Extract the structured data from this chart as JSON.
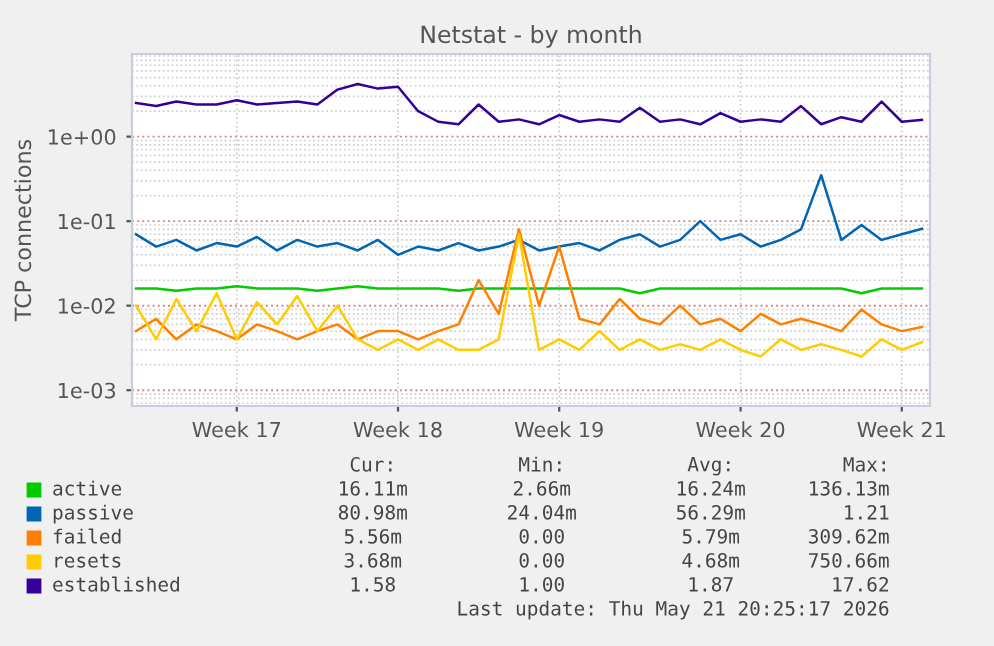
{
  "chart_data": {
    "type": "line",
    "title": "Netstat - by month",
    "ylabel": "TCP connections",
    "log": "y",
    "grid": true,
    "legend": "bottom",
    "marker": "none",
    "line_style": "solid",
    "ylim": [
      0.00065,
      9.5
    ],
    "yticks": [
      {
        "value": 0.001,
        "label": "1e-03"
      },
      {
        "value": 0.01,
        "label": "1e-02"
      },
      {
        "value": 0.1,
        "label": "1e-01"
      },
      {
        "value": 1,
        "label": "1e+00"
      }
    ],
    "categories": [
      null,
      null,
      null,
      null,
      null,
      "Week 17",
      null,
      null,
      null,
      null,
      null,
      null,
      null,
      "Week 18",
      null,
      null,
      null,
      null,
      null,
      null,
      null,
      "Week 19",
      null,
      null,
      null,
      null,
      null,
      null,
      null,
      null,
      "Week 20",
      null,
      null,
      null,
      null,
      null,
      null,
      null,
      "Week 21",
      null
    ],
    "series": [
      {
        "name": "active",
        "color": "#00cc00",
        "values": [
          0.016,
          0.016,
          0.015,
          0.016,
          0.016,
          0.017,
          0.016,
          0.016,
          0.016,
          0.015,
          0.016,
          0.017,
          0.016,
          0.016,
          0.016,
          0.016,
          0.015,
          0.016,
          0.016,
          0.016,
          0.016,
          0.016,
          0.016,
          0.016,
          0.016,
          0.014,
          0.016,
          0.016,
          0.016,
          0.016,
          0.016,
          0.016,
          0.016,
          0.016,
          0.016,
          0.016,
          0.014,
          0.016,
          0.016,
          0.016
        ]
      },
      {
        "name": "passive",
        "color": "#0066b3",
        "values": [
          0.07,
          0.05,
          0.06,
          0.045,
          0.055,
          0.05,
          0.065,
          0.045,
          0.06,
          0.05,
          0.055,
          0.045,
          0.06,
          0.04,
          0.05,
          0.045,
          0.055,
          0.045,
          0.05,
          0.06,
          0.045,
          0.05,
          0.055,
          0.045,
          0.06,
          0.07,
          0.05,
          0.06,
          0.1,
          0.06,
          0.07,
          0.05,
          0.06,
          0.08,
          0.35,
          0.06,
          0.09,
          0.06,
          0.07,
          0.081
        ]
      },
      {
        "name": "failed",
        "color": "#ff8000",
        "values": [
          0.005,
          0.007,
          0.004,
          0.006,
          0.005,
          0.004,
          0.006,
          0.005,
          0.004,
          0.005,
          0.006,
          0.004,
          0.005,
          0.005,
          0.004,
          0.005,
          0.006,
          0.02,
          0.008,
          0.08,
          0.01,
          0.05,
          0.007,
          0.006,
          0.012,
          0.007,
          0.006,
          0.01,
          0.006,
          0.007,
          0.005,
          0.008,
          0.006,
          0.007,
          0.006,
          0.005,
          0.009,
          0.006,
          0.005,
          0.0056
        ]
      },
      {
        "name": "resets",
        "color": "#ffcc00",
        "values": [
          0.01,
          0.004,
          0.012,
          0.005,
          0.014,
          0.004,
          0.011,
          0.006,
          0.013,
          0.005,
          0.01,
          0.004,
          0.003,
          0.004,
          0.003,
          0.004,
          0.003,
          0.003,
          0.004,
          0.07,
          0.003,
          0.004,
          0.003,
          0.005,
          0.003,
          0.004,
          0.003,
          0.0035,
          0.003,
          0.004,
          0.003,
          0.0025,
          0.004,
          0.003,
          0.0035,
          0.003,
          0.0025,
          0.004,
          0.003,
          0.0037
        ]
      },
      {
        "name": "established",
        "color": "#330099",
        "values": [
          2.5,
          2.3,
          2.6,
          2.4,
          2.4,
          2.7,
          2.4,
          2.5,
          2.6,
          2.4,
          3.6,
          4.2,
          3.7,
          3.9,
          2.0,
          1.5,
          1.4,
          2.4,
          1.5,
          1.6,
          1.4,
          1.8,
          1.5,
          1.6,
          1.5,
          2.2,
          1.5,
          1.6,
          1.4,
          1.9,
          1.5,
          1.6,
          1.5,
          2.3,
          1.4,
          1.7,
          1.5,
          2.6,
          1.5,
          1.58
        ]
      }
    ],
    "annotations": [
      "Cur:",
      "Min:",
      "Avg:",
      "Max:",
      "16.11m",
      "2.66m",
      "16.24m",
      "136.13m",
      "80.98m",
      "24.04m",
      "56.29m",
      "1.21",
      "5.56m",
      "0.00",
      "5.79m",
      "309.62m",
      "3.68m",
      "0.00",
      "4.68m",
      "750.66m",
      "1.58",
      "1.00",
      "1.87",
      "17.62",
      "Last update: Thu May 21 20:25:17 2026"
    ]
  }
}
